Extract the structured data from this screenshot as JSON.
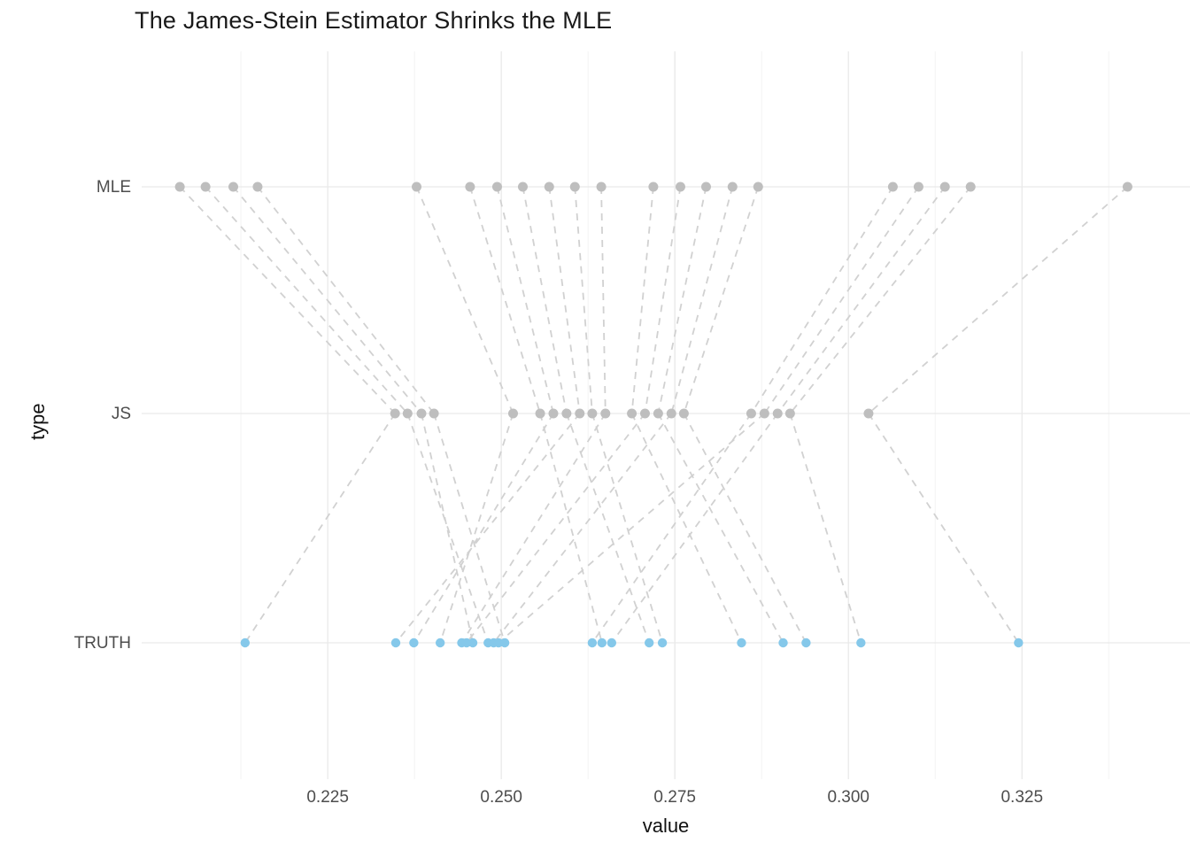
{
  "chart_data": {
    "type": "scatter",
    "title": "The James-Stein Estimator Shrinks the MLE",
    "xlabel": "value",
    "ylabel": "type",
    "legend": "none",
    "grid": true,
    "y_categories": [
      "MLE",
      "JS",
      "TRUTH"
    ],
    "x_ticks": [
      0.225,
      0.25,
      0.275,
      0.3,
      0.325
    ],
    "x_tick_labels": [
      "0.225",
      "0.250",
      "0.275",
      "0.300",
      "0.325"
    ],
    "x_minor_breaks": [
      0.2125,
      0.2375,
      0.2625,
      0.2875,
      0.3125,
      0.3375
    ],
    "xlim": [
      0.1982,
      0.3492
    ],
    "colors": {
      "mle_point": "#bebebe",
      "js_point": "#bebebe",
      "truth_point": "#85c8ea",
      "segment": "#d1d1d1",
      "grid_major": "#e9e9e9",
      "grid_minor": "#f3f3f3",
      "axis_text": "#4d4d4d",
      "title": "#1a1a1a"
    },
    "players": [
      {
        "mle": 0.2037,
        "js": 0.2347,
        "truth": 0.2131
      },
      {
        "mle": 0.2074,
        "js": 0.2365,
        "truth": 0.2481
      },
      {
        "mle": 0.2114,
        "js": 0.2385,
        "truth": 0.2459
      },
      {
        "mle": 0.2149,
        "js": 0.2403,
        "truth": 0.2505
      },
      {
        "mle": 0.2378,
        "js": 0.2517,
        "truth": 0.2412
      },
      {
        "mle": 0.2455,
        "js": 0.2556,
        "truth": 0.2645
      },
      {
        "mle": 0.2494,
        "js": 0.2575,
        "truth": 0.2374
      },
      {
        "mle": 0.2531,
        "js": 0.2594,
        "truth": 0.2713
      },
      {
        "mle": 0.2569,
        "js": 0.2613,
        "truth": 0.2348
      },
      {
        "mle": 0.2606,
        "js": 0.2631,
        "truth": 0.2732
      },
      {
        "mle": 0.2644,
        "js": 0.265,
        "truth": 0.2443
      },
      {
        "mle": 0.2719,
        "js": 0.2688,
        "truth": 0.2846
      },
      {
        "mle": 0.2758,
        "js": 0.2707,
        "truth": 0.245
      },
      {
        "mle": 0.2795,
        "js": 0.2726,
        "truth": 0.2906
      },
      {
        "mle": 0.2833,
        "js": 0.2745,
        "truth": 0.2489
      },
      {
        "mle": 0.287,
        "js": 0.2763,
        "truth": 0.2939
      },
      {
        "mle": 0.3064,
        "js": 0.286,
        "truth": 0.2631
      },
      {
        "mle": 0.3101,
        "js": 0.2879,
        "truth": 0.2496
      },
      {
        "mle": 0.3139,
        "js": 0.2898,
        "truth": 0.2659
      },
      {
        "mle": 0.3176,
        "js": 0.2916,
        "truth": 0.3018
      },
      {
        "mle": 0.3402,
        "js": 0.3029,
        "truth": 0.3245
      }
    ]
  }
}
